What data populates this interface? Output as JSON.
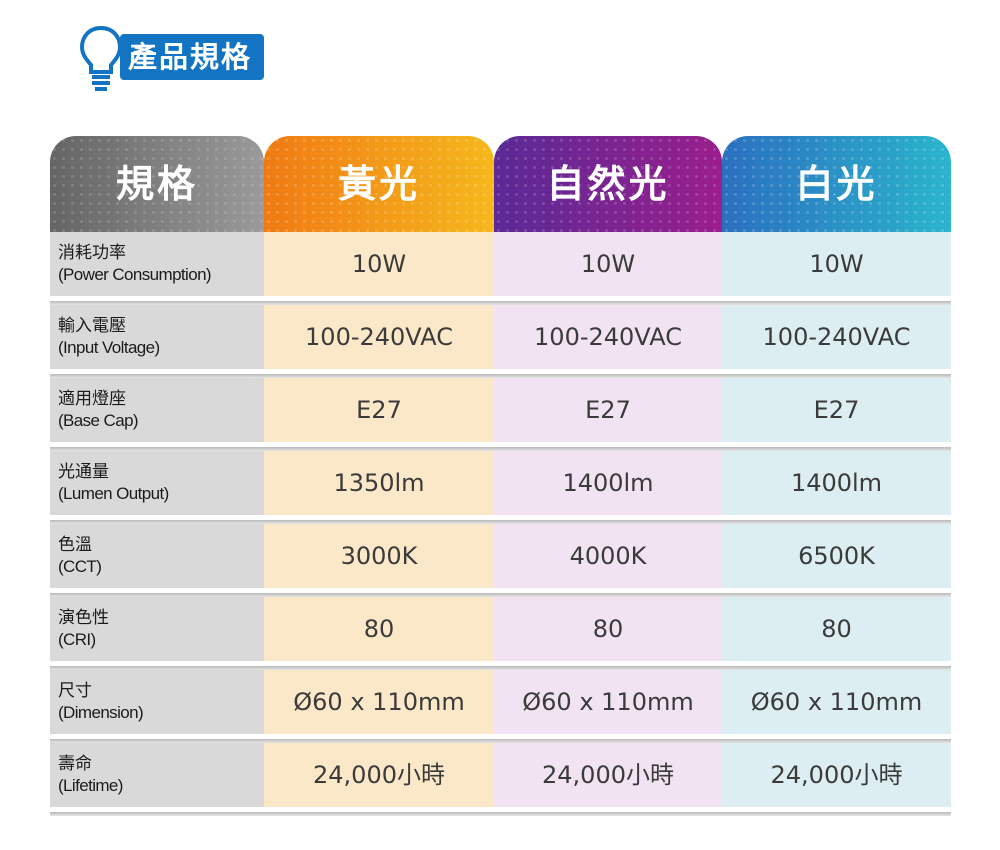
{
  "title": "產品規格",
  "table": {
    "headers": [
      "規格",
      "黃光",
      "自然光",
      "白光"
    ],
    "colors": {
      "yellow": "#f5a21a",
      "natural": "#7b2591",
      "white": "#2b9fcf",
      "spec": "#7a7a7a",
      "title": "#1474c4"
    },
    "rows": [
      {
        "label": "消耗功率",
        "label_en": "(Power Consumption)",
        "values": [
          "10W",
          "10W",
          "10W"
        ]
      },
      {
        "label": "輸入電壓",
        "label_en": "(Input Voltage)",
        "values": [
          "100-240VAC",
          "100-240VAC",
          "100-240VAC"
        ]
      },
      {
        "label": "適用燈座",
        "label_en": "(Base Cap)",
        "values": [
          "E27",
          "E27",
          "E27"
        ]
      },
      {
        "label": "光通量",
        "label_en": "(Lumen Output)",
        "values": [
          "1350lm",
          "1400lm",
          "1400lm"
        ]
      },
      {
        "label": "色溫",
        "label_en": "(CCT)",
        "values": [
          "3000K",
          "4000K",
          "6500K"
        ]
      },
      {
        "label": "演色性",
        "label_en": "(CRI)",
        "values": [
          "80",
          "80",
          "80"
        ]
      },
      {
        "label": "尺寸",
        "label_en": "(Dimension)",
        "values": [
          "Ø60 x 110mm",
          "Ø60 x 110mm",
          "Ø60 x 110mm"
        ]
      },
      {
        "label": "壽命",
        "label_en": "(Lifetime)",
        "values": [
          "24,000小時",
          "24,000小時",
          "24,000小時"
        ]
      }
    ]
  }
}
